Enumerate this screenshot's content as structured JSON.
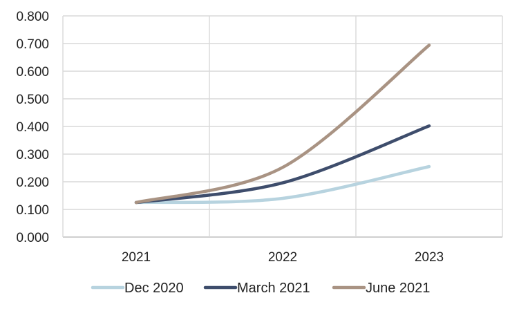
{
  "chart_data": {
    "type": "line",
    "title": "",
    "xlabel": "",
    "ylabel": "",
    "x": [
      "2021",
      "2022",
      "2023"
    ],
    "ylim": [
      0,
      0.8
    ],
    "yticks": [
      "0.000",
      "0.100",
      "0.200",
      "0.300",
      "0.400",
      "0.500",
      "0.600",
      "0.700",
      "0.800"
    ],
    "ytick_values": [
      0,
      0.1,
      0.2,
      0.3,
      0.4,
      0.5,
      0.6,
      0.7,
      0.8
    ],
    "grid": true,
    "legend_position": "bottom",
    "series": [
      {
        "name": "Dec 2020",
        "color": "#b7d3df",
        "values": [
          0.125,
          0.14,
          0.255
        ]
      },
      {
        "name": "March 2021",
        "color": "#3e4d6c",
        "values": [
          0.125,
          0.196,
          0.402
        ]
      },
      {
        "name": "June 2021",
        "color": "#a99383",
        "values": [
          0.125,
          0.252,
          0.694
        ]
      }
    ]
  }
}
